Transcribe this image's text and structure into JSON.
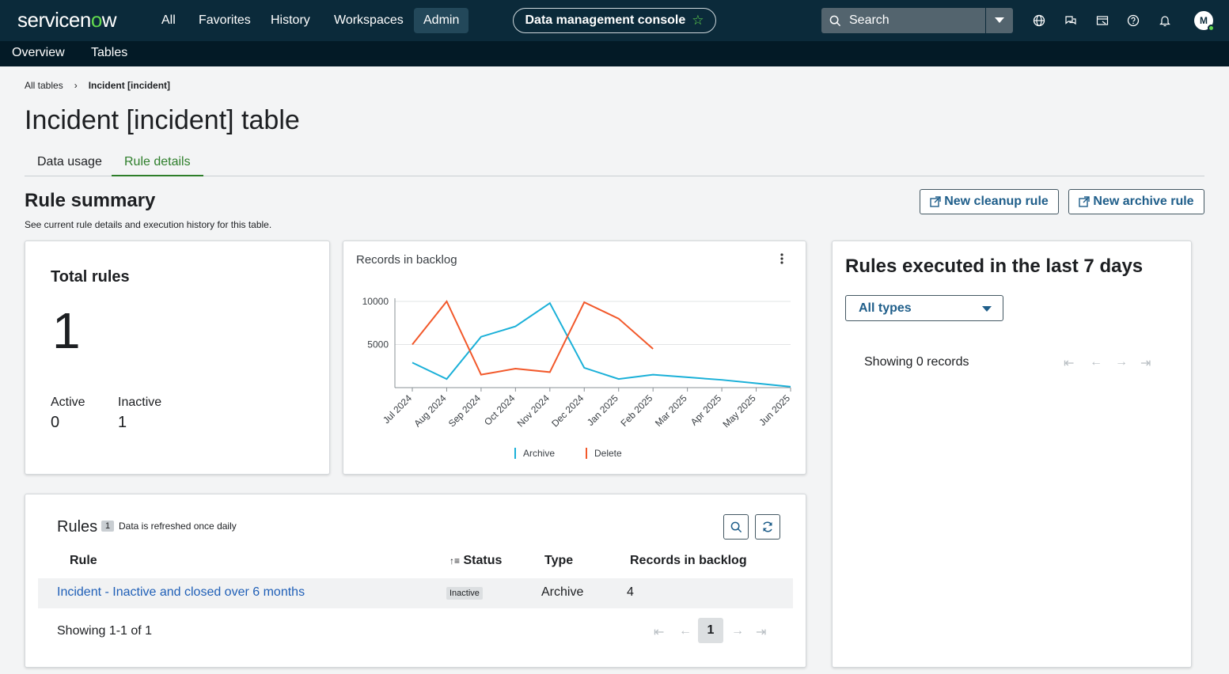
{
  "header": {
    "logo_text": "servicen",
    "logo_o": "o",
    "logo_w": "w",
    "nav": [
      "All",
      "Favorites",
      "History",
      "Workspaces",
      "Admin"
    ],
    "active_nav": "Admin",
    "context_title": "Data management console",
    "search_placeholder": "Search",
    "avatar_initial": "M"
  },
  "subnav": [
    "Overview",
    "Tables"
  ],
  "breadcrumb": [
    "All tables",
    "Incident [incident]"
  ],
  "page_title": "Incident [incident] table",
  "tabs": [
    "Data usage",
    "Rule details"
  ],
  "active_tab": "Rule details",
  "summary": {
    "title": "Rule summary",
    "description": "See current rule details and execution history for this table.",
    "new_cleanup_label": "New cleanup rule",
    "new_archive_label": "New archive rule"
  },
  "total_rules": {
    "title": "Total rules",
    "value": "1",
    "active_label": "Active",
    "active_value": "0",
    "inactive_label": "Inactive",
    "inactive_value": "1"
  },
  "backlog_chart": {
    "title": "Records in backlog"
  },
  "chart_data": {
    "type": "line",
    "title": "Records in backlog",
    "x": [
      "Jul 2024",
      "Aug 2024",
      "Sep 2024",
      "Oct 2024",
      "Nov 2024",
      "Dec 2024",
      "Jan 2025",
      "Feb 2025",
      "Mar 2025",
      "Apr 2025",
      "May 2025",
      "Jun 2025"
    ],
    "yticks": [
      5000,
      10000
    ],
    "ylim": [
      0,
      10000
    ],
    "series": [
      {
        "name": "Archive",
        "color": "#1ab0d8",
        "values": [
          2900,
          1000,
          5900,
          7100,
          9800,
          2300,
          1000,
          1500,
          1200,
          900,
          500,
          100
        ]
      },
      {
        "name": "Delete",
        "color": "#f2582a",
        "values": [
          5000,
          10000,
          1500,
          2200,
          1800,
          9900,
          8000,
          4500,
          null,
          null,
          null,
          null
        ]
      }
    ],
    "legend_position": "bottom"
  },
  "rules_table": {
    "title": "Rules",
    "count": "1",
    "refresh_note": "Data is refreshed once daily",
    "columns": [
      "Rule",
      "Status",
      "Type",
      "Records in backlog"
    ],
    "rows": [
      {
        "rule": "Incident - Inactive and closed over 6 months",
        "status": "Inactive",
        "type": "Archive",
        "backlog": "4"
      }
    ],
    "showing": "Showing 1-1 of 1",
    "current_page": "1"
  },
  "executed": {
    "title": "Rules executed in the last 7 days",
    "filter_value": "All types",
    "showing": "Showing 0 records"
  },
  "colors": {
    "nav_bg": "#0b2a3a",
    "accent_green": "#62d84e",
    "link_blue": "#1f5fb7",
    "tab_active": "#2d7e2a"
  }
}
